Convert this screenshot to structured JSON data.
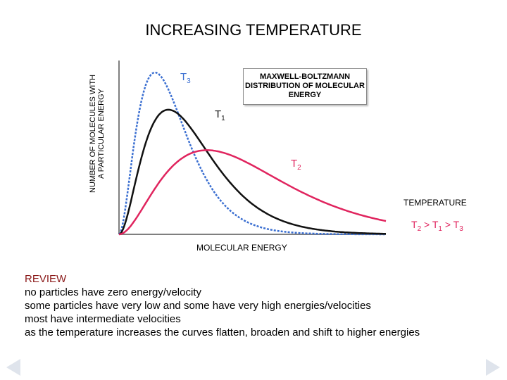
{
  "title": "INCREASING TEMPERATURE",
  "chart_data": {
    "type": "line",
    "title": "MAXWELL-BOLTZMANN DISTRIBUTION OF MOLECULAR ENERGY",
    "xlabel": "MOLECULAR ENERGY",
    "ylabel": [
      "NUMBER OF MOLECULES WITH",
      "A PARTICULAR ENERGY"
    ],
    "xlim": [
      0,
      100
    ],
    "ylim": [
      0,
      100
    ],
    "grid": false,
    "series": [
      {
        "name": "T3",
        "color": "#3b6fd1",
        "dashed": true,
        "peak_x": 13.5,
        "peak_y": 100
      },
      {
        "name": "T1",
        "color": "#111111",
        "dashed": false,
        "peak_x": 18.5,
        "peak_y": 77
      },
      {
        "name": "T2",
        "color": "#e0245e",
        "dashed": false,
        "peak_x": 33,
        "peak_y": 52
      }
    ],
    "labels": {
      "T3": {
        "main": "T",
        "sub": "3"
      },
      "T1": {
        "main": "T",
        "sub": "1"
      },
      "T2": {
        "main": "T",
        "sub": "2"
      }
    },
    "temperature_label": "TEMPERATURE",
    "order": {
      "a": "T",
      "a_sub": "2",
      "gt1": " > ",
      "b": "T",
      "b_sub": "1",
      "gt2": " > ",
      "c": "T",
      "c_sub": "3"
    }
  },
  "review": {
    "title": "REVIEW",
    "lines": [
      "no particles have zero energy/velocity",
      "some particles have very low and some have very high energies/velocities",
      "most have intermediate velocities",
      "as the temperature increases the curves flatten, broaden and shift to higher energies"
    ]
  },
  "nav": {
    "prev_icon": "left-arrow-icon",
    "next_icon": "right-arrow-icon"
  }
}
